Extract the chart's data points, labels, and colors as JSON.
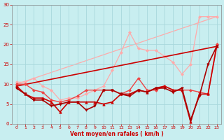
{
  "background_color": "#c8eef0",
  "grid_color": "#a8d8dc",
  "xlabel": "Vent moyen/en rafales ( km/h )",
  "xlabel_color": "#cc0000",
  "tick_color": "#cc0000",
  "xlim": [
    -0.5,
    23.5
  ],
  "ylim": [
    0,
    30
  ],
  "yticks": [
    0,
    5,
    10,
    15,
    20,
    25,
    30
  ],
  "xticks": [
    0,
    1,
    2,
    3,
    4,
    5,
    6,
    7,
    8,
    9,
    10,
    11,
    12,
    13,
    14,
    15,
    16,
    17,
    18,
    19,
    20,
    21,
    22,
    23
  ],
  "lines": [
    {
      "x": [
        0,
        1,
        2,
        3,
        4,
        5,
        6,
        7,
        8,
        9,
        10,
        11,
        12,
        13,
        14,
        15,
        16,
        17,
        18,
        19,
        20,
        21,
        22,
        23
      ],
      "y": [
        10.5,
        10.5,
        11.5,
        9.5,
        8.5,
        6.0,
        6.5,
        6.5,
        7.5,
        8.5,
        9.5,
        13.5,
        18.0,
        23.0,
        19.0,
        18.5,
        18.5,
        17.0,
        15.5,
        12.5,
        15.0,
        27.0,
        27.0,
        27.0
      ],
      "color": "#ffaaaa",
      "lw": 0.9,
      "marker": "D",
      "ms": 2.0,
      "zorder": 2
    },
    {
      "x": [
        0,
        1,
        2,
        3,
        4,
        5,
        6,
        7,
        8,
        9,
        10,
        11,
        12,
        13,
        14,
        15,
        16,
        17,
        18,
        19,
        20,
        21,
        22,
        23
      ],
      "y": [
        10.0,
        10.0,
        8.5,
        8.0,
        6.0,
        5.5,
        6.0,
        7.0,
        8.5,
        8.5,
        8.5,
        8.5,
        7.5,
        8.5,
        11.5,
        8.5,
        8.5,
        9.5,
        8.5,
        8.5,
        8.5,
        8.0,
        7.5,
        20.0
      ],
      "color": "#ee4444",
      "lw": 1.0,
      "marker": "D",
      "ms": 2.0,
      "zorder": 3
    },
    {
      "x": [
        0,
        1,
        2,
        3,
        4,
        5,
        6,
        7,
        8,
        9,
        10,
        11,
        12,
        13,
        14,
        15,
        16,
        17,
        18,
        19,
        20,
        21,
        22,
        23
      ],
      "y": [
        9.5,
        7.5,
        6.5,
        6.5,
        5.5,
        3.0,
        5.5,
        5.5,
        5.5,
        5.5,
        5.0,
        5.5,
        7.5,
        7.5,
        8.5,
        8.0,
        9.0,
        9.5,
        8.5,
        8.5,
        0.5,
        7.5,
        7.5,
        19.5
      ],
      "color": "#cc0000",
      "lw": 1.2,
      "marker": "^",
      "ms": 2.5,
      "zorder": 4
    },
    {
      "x": [
        0,
        1,
        2,
        3,
        4,
        5,
        6,
        7,
        8,
        9,
        10,
        11,
        12,
        13,
        14,
        15,
        16,
        17,
        18,
        19,
        20,
        21,
        22,
        23
      ],
      "y": [
        9.0,
        7.5,
        6.0,
        6.0,
        4.5,
        5.0,
        5.5,
        5.5,
        3.5,
        4.5,
        8.5,
        8.5,
        7.5,
        7.0,
        8.5,
        8.0,
        9.0,
        9.0,
        8.0,
        9.0,
        1.0,
        7.0,
        15.0,
        19.5
      ],
      "color": "#aa0000",
      "lw": 1.2,
      "marker": "v",
      "ms": 2.5,
      "zorder": 4
    },
    {
      "x": [
        0,
        23
      ],
      "y": [
        9.5,
        19.5
      ],
      "color": "#cc0000",
      "lw": 1.2,
      "marker": null,
      "ms": 0,
      "zorder": 2
    },
    {
      "x": [
        0,
        23
      ],
      "y": [
        10.0,
        27.0
      ],
      "color": "#ffaaaa",
      "lw": 0.9,
      "marker": null,
      "ms": 0,
      "zorder": 1
    }
  ]
}
